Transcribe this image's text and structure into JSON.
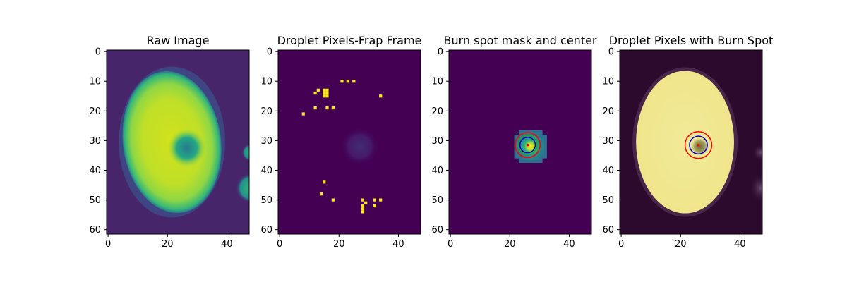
{
  "colors": {
    "viridis_dark": "#440154",
    "viridis_mid": "#21918c",
    "viridis_green": "#5ec962",
    "viridis_yellow": "#fde725",
    "circle_red": "#ff0000",
    "circle_blue": "#0000cc",
    "circle_green": "#2ca02c",
    "center_dot": "#ff0000"
  },
  "chart_data": [
    {
      "type": "heatmap",
      "title": "Raw Image",
      "xlim": [
        0,
        47
      ],
      "ylim": [
        61,
        0
      ],
      "xticks": [
        "0",
        "20",
        "40"
      ],
      "yticks": [
        "0",
        "10",
        "20",
        "30",
        "40",
        "50",
        "60"
      ],
      "image_shape": [
        62,
        48
      ],
      "droplet_ellipse": {
        "cx": 21.5,
        "cy": 30.5,
        "rx": 16.5,
        "ry": 24
      },
      "dark_hole": {
        "cx": 26.5,
        "cy": 32.5,
        "rx": 3.5,
        "ry": 4
      },
      "side_droplets": [
        {
          "cx": 48,
          "cy": 46,
          "r": 5
        },
        {
          "cx": 48,
          "cy": 34,
          "r": 3
        }
      ]
    },
    {
      "type": "heatmap",
      "title": "Droplet Pixels-Frap Frame",
      "xlim": [
        0,
        47
      ],
      "ylim": [
        61,
        0
      ],
      "xticks": [
        "0",
        "20",
        "40"
      ],
      "yticks": [
        "0",
        "10",
        "20",
        "30",
        "40",
        "50",
        "60"
      ],
      "image_shape": [
        62,
        48
      ],
      "faint_blob": {
        "cx": 27,
        "cy": 32,
        "r": 4
      },
      "bright_pixels": [
        [
          21,
          10
        ],
        [
          23,
          10
        ],
        [
          25,
          10
        ],
        [
          12,
          14
        ],
        [
          13,
          13
        ],
        [
          15,
          13
        ],
        [
          16,
          13
        ],
        [
          15,
          14
        ],
        [
          16,
          14
        ],
        [
          15,
          15
        ],
        [
          16,
          15
        ],
        [
          34,
          15
        ],
        [
          12,
          19
        ],
        [
          16,
          19
        ],
        [
          18,
          19
        ],
        [
          8,
          21
        ],
        [
          15,
          44
        ],
        [
          14,
          48
        ],
        [
          18,
          50
        ],
        [
          28,
          50
        ],
        [
          29,
          51
        ],
        [
          32,
          50
        ],
        [
          34,
          50
        ],
        [
          28,
          52
        ],
        [
          32,
          52
        ],
        [
          28,
          53
        ],
        [
          28,
          54
        ]
      ]
    },
    {
      "type": "heatmap",
      "title": "Burn spot mask and center",
      "xlim": [
        0,
        47
      ],
      "ylim": [
        61,
        0
      ],
      "xticks": [
        "0",
        "20",
        "40"
      ],
      "yticks": [
        "0",
        "10",
        "20",
        "30",
        "40",
        "50",
        "60"
      ],
      "image_shape": [
        62,
        48
      ],
      "mask_blob": {
        "cx": 27,
        "cy": 32,
        "rx": 5.5,
        "ry": 5.5
      },
      "center": [
        26.5,
        32
      ],
      "circles": [
        {
          "r": 4.2,
          "color": "red"
        },
        {
          "r": 3.2,
          "color": "green"
        },
        {
          "r": 2.6,
          "color": "blue"
        }
      ]
    },
    {
      "type": "heatmap",
      "title": "Droplet Pixels with Burn Spot",
      "xlim": [
        0,
        47
      ],
      "ylim": [
        61,
        0
      ],
      "xticks": [
        "0",
        "20",
        "40"
      ],
      "yticks": [
        "0",
        "10",
        "20",
        "30",
        "40",
        "50",
        "60"
      ],
      "image_shape": [
        62,
        48
      ],
      "droplet_ellipse": {
        "cx": 21.5,
        "cy": 30.5,
        "rx": 16.5,
        "ry": 24
      },
      "center": [
        26.5,
        32
      ],
      "circles": [
        {
          "r": 4.5,
          "color": "red"
        },
        {
          "r": 3.0,
          "color": "blue"
        }
      ]
    }
  ]
}
